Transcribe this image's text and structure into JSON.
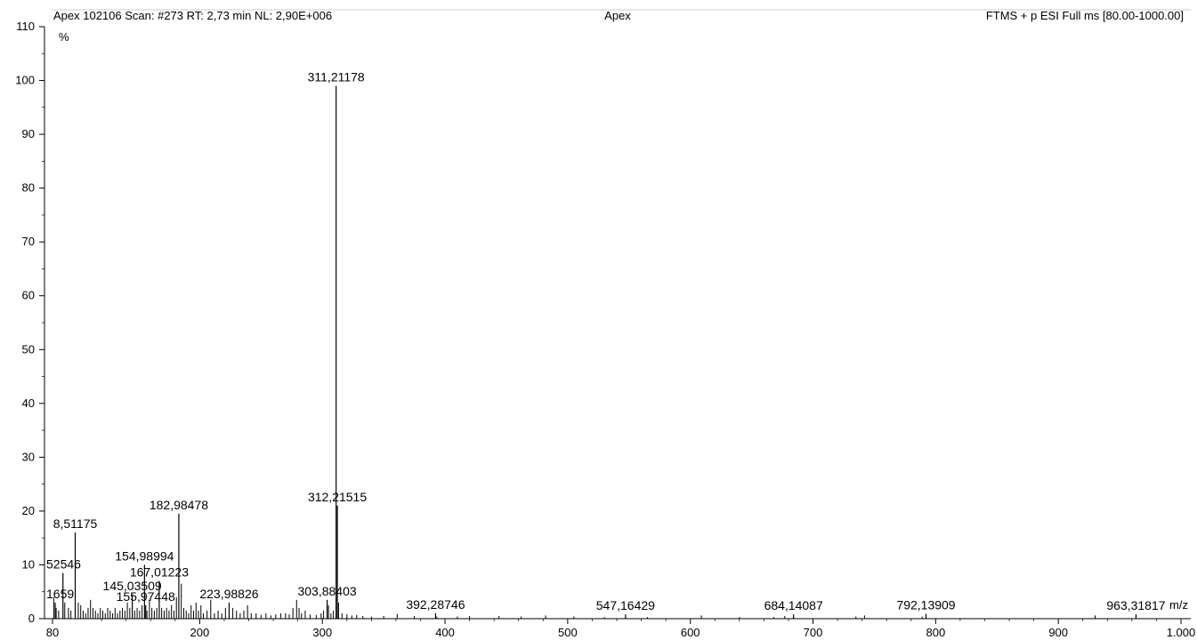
{
  "header": {
    "scan_info": "Apex 102106 Scan: #273  RT: 2,73 min NL: 2,90E+006",
    "sample_name": "Apex",
    "method": "FTMS + p ESI Full ms [80.00-1000.00]"
  },
  "chart_data": {
    "type": "bar",
    "title": "",
    "xlabel": "m/z",
    "ylabel": "%",
    "xlim": [
      80,
      1000
    ],
    "ylim": [
      0,
      110
    ],
    "x_ticks": [
      "80",
      "200",
      "300",
      "400",
      "500",
      "600",
      "700",
      "800",
      "900",
      "1.000"
    ],
    "x_tick_values": [
      80,
      200,
      300,
      400,
      500,
      600,
      700,
      800,
      900,
      1000
    ],
    "y_ticks": [
      "0",
      "10",
      "20",
      "30",
      "40",
      "50",
      "60",
      "70",
      "80",
      "90",
      "100",
      "110"
    ],
    "y_tick_values": [
      0,
      10,
      20,
      30,
      40,
      50,
      60,
      70,
      80,
      90,
      100,
      110
    ],
    "grid": false,
    "labeled_peaks": [
      {
        "mz": 311.21178,
        "intensity": 99,
        "label": "311,21178"
      },
      {
        "mz": 312.21515,
        "intensity": 21,
        "label": "312,21515"
      },
      {
        "mz": 182.98478,
        "intensity": 19.5,
        "label": "182,98478"
      },
      {
        "mz": 98.51175,
        "intensity": 16,
        "label": "8,51175"
      },
      {
        "mz": 88.52546,
        "intensity": 8.5,
        "label": "52546"
      },
      {
        "mz": 154.98994,
        "intensity": 10,
        "label": "154,98994"
      },
      {
        "mz": 167.01223,
        "intensity": 7,
        "label": "167,01223"
      },
      {
        "mz": 145.03509,
        "intensity": 4.5,
        "label": "145,03509"
      },
      {
        "mz": 155.97448,
        "intensity": 2.5,
        "label": "155,97448"
      },
      {
        "mz": 82.1659,
        "intensity": 3,
        "label": "1659"
      },
      {
        "mz": 223.98826,
        "intensity": 3,
        "label": "223,98826"
      },
      {
        "mz": 303.88403,
        "intensity": 3.5,
        "label": "303,88403"
      },
      {
        "mz": 392.28746,
        "intensity": 1,
        "label": "392,28746"
      },
      {
        "mz": 547.16429,
        "intensity": 0.8,
        "label": "547,16429"
      },
      {
        "mz": 684.14087,
        "intensity": 0.8,
        "label": "684,14087"
      },
      {
        "mz": 792.13909,
        "intensity": 0.9,
        "label": "792,13909"
      },
      {
        "mz": 963.31817,
        "intensity": 0.8,
        "label": "963,31817"
      }
    ],
    "minor_peaks": [
      {
        "mz": 81,
        "intensity": 4
      },
      {
        "mz": 83,
        "intensity": 2
      },
      {
        "mz": 85,
        "intensity": 1.5
      },
      {
        "mz": 90,
        "intensity": 3
      },
      {
        "mz": 93,
        "intensity": 2
      },
      {
        "mz": 95,
        "intensity": 1.5
      },
      {
        "mz": 101,
        "intensity": 3
      },
      {
        "mz": 103,
        "intensity": 2.5
      },
      {
        "mz": 105,
        "intensity": 1.5
      },
      {
        "mz": 107,
        "intensity": 1
      },
      {
        "mz": 109,
        "intensity": 2
      },
      {
        "mz": 111,
        "intensity": 3.5
      },
      {
        "mz": 113,
        "intensity": 2
      },
      {
        "mz": 115,
        "intensity": 1.5
      },
      {
        "mz": 117,
        "intensity": 1
      },
      {
        "mz": 119,
        "intensity": 2
      },
      {
        "mz": 121,
        "intensity": 1.5
      },
      {
        "mz": 123,
        "intensity": 1
      },
      {
        "mz": 125,
        "intensity": 2
      },
      {
        "mz": 127,
        "intensity": 1.5
      },
      {
        "mz": 129,
        "intensity": 1
      },
      {
        "mz": 131,
        "intensity": 2
      },
      {
        "mz": 133,
        "intensity": 1
      },
      {
        "mz": 135,
        "intensity": 1.5
      },
      {
        "mz": 137,
        "intensity": 2
      },
      {
        "mz": 139,
        "intensity": 1.5
      },
      {
        "mz": 141,
        "intensity": 3
      },
      {
        "mz": 143,
        "intensity": 2
      },
      {
        "mz": 147,
        "intensity": 1.5
      },
      {
        "mz": 149,
        "intensity": 2
      },
      {
        "mz": 151,
        "intensity": 1.5
      },
      {
        "mz": 153,
        "intensity": 2.5
      },
      {
        "mz": 157,
        "intensity": 1.5
      },
      {
        "mz": 159,
        "intensity": 3.5
      },
      {
        "mz": 161,
        "intensity": 2
      },
      {
        "mz": 163,
        "intensity": 1.5
      },
      {
        "mz": 165,
        "intensity": 2
      },
      {
        "mz": 169,
        "intensity": 2
      },
      {
        "mz": 171,
        "intensity": 1.5
      },
      {
        "mz": 173,
        "intensity": 2
      },
      {
        "mz": 175,
        "intensity": 1.5
      },
      {
        "mz": 177,
        "intensity": 2.5
      },
      {
        "mz": 179,
        "intensity": 1.5
      },
      {
        "mz": 181,
        "intensity": 4
      },
      {
        "mz": 185,
        "intensity": 6.5
      },
      {
        "mz": 187,
        "intensity": 2
      },
      {
        "mz": 189,
        "intensity": 1.5
      },
      {
        "mz": 191,
        "intensity": 1
      },
      {
        "mz": 193,
        "intensity": 2.5
      },
      {
        "mz": 195,
        "intensity": 1.5
      },
      {
        "mz": 197,
        "intensity": 3
      },
      {
        "mz": 199,
        "intensity": 1.5
      },
      {
        "mz": 201,
        "intensity": 2.5
      },
      {
        "mz": 203,
        "intensity": 1
      },
      {
        "mz": 206,
        "intensity": 1.5
      },
      {
        "mz": 209,
        "intensity": 3.5
      },
      {
        "mz": 212,
        "intensity": 1
      },
      {
        "mz": 215,
        "intensity": 1.5
      },
      {
        "mz": 218,
        "intensity": 1
      },
      {
        "mz": 221,
        "intensity": 2
      },
      {
        "mz": 227,
        "intensity": 2
      },
      {
        "mz": 230,
        "intensity": 1.5
      },
      {
        "mz": 233,
        "intensity": 1
      },
      {
        "mz": 236,
        "intensity": 1.5
      },
      {
        "mz": 239,
        "intensity": 2.5
      },
      {
        "mz": 242,
        "intensity": 1
      },
      {
        "mz": 246,
        "intensity": 1
      },
      {
        "mz": 250,
        "intensity": 0.7
      },
      {
        "mz": 254,
        "intensity": 1
      },
      {
        "mz": 258,
        "intensity": 0.6
      },
      {
        "mz": 262,
        "intensity": 0.8
      },
      {
        "mz": 266,
        "intensity": 1
      },
      {
        "mz": 270,
        "intensity": 1
      },
      {
        "mz": 273,
        "intensity": 0.8
      },
      {
        "mz": 276,
        "intensity": 2
      },
      {
        "mz": 279,
        "intensity": 3.5
      },
      {
        "mz": 281,
        "intensity": 2
      },
      {
        "mz": 283,
        "intensity": 1
      },
      {
        "mz": 286,
        "intensity": 1.5
      },
      {
        "mz": 290,
        "intensity": 0.8
      },
      {
        "mz": 295,
        "intensity": 0.7
      },
      {
        "mz": 299,
        "intensity": 1
      },
      {
        "mz": 301,
        "intensity": 1.5
      },
      {
        "mz": 305,
        "intensity": 2.5
      },
      {
        "mz": 307,
        "intensity": 1
      },
      {
        "mz": 309,
        "intensity": 1.5
      },
      {
        "mz": 313.2,
        "intensity": 3
      },
      {
        "mz": 316,
        "intensity": 1
      },
      {
        "mz": 320,
        "intensity": 0.8
      },
      {
        "mz": 324,
        "intensity": 0.6
      },
      {
        "mz": 328,
        "intensity": 0.7
      },
      {
        "mz": 333,
        "intensity": 0.5
      },
      {
        "mz": 340,
        "intensity": 0.4
      },
      {
        "mz": 350,
        "intensity": 0.5
      },
      {
        "mz": 361,
        "intensity": 0.9
      },
      {
        "mz": 375,
        "intensity": 0.5
      },
      {
        "mz": 393.3,
        "intensity": 0.4
      },
      {
        "mz": 410,
        "intensity": 0.4
      },
      {
        "mz": 420,
        "intensity": 0.5
      },
      {
        "mz": 444,
        "intensity": 0.5
      },
      {
        "mz": 462,
        "intensity": 0.4
      },
      {
        "mz": 482,
        "intensity": 0.6
      },
      {
        "mz": 505,
        "intensity": 0.4
      },
      {
        "mz": 530,
        "intensity": 0.3
      },
      {
        "mz": 565,
        "intensity": 0.3
      },
      {
        "mz": 609,
        "intensity": 0.6
      },
      {
        "mz": 640,
        "intensity": 0.3
      },
      {
        "mz": 668,
        "intensity": 0.3
      },
      {
        "mz": 677,
        "intensity": 0.5
      },
      {
        "mz": 735,
        "intensity": 0.4
      },
      {
        "mz": 742,
        "intensity": 0.6
      },
      {
        "mz": 789,
        "intensity": 0.4
      },
      {
        "mz": 930,
        "intensity": 0.6
      }
    ]
  }
}
